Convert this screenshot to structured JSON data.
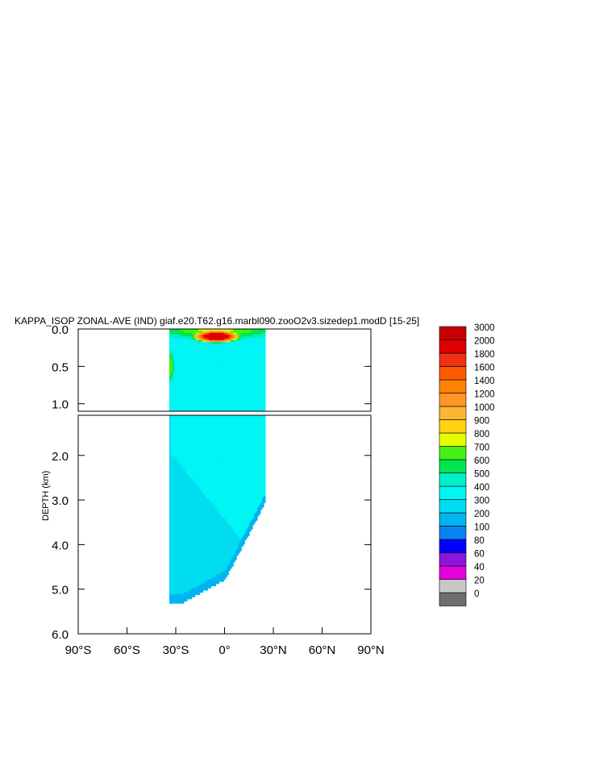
{
  "chart_data": {
    "type": "heatmap",
    "title": "KAPPA_ISOP ZONAL-AVE (IND) giaf.e20.T62.g16.marbl090.zooO2v3.sizedep1.modD [15-25]",
    "ylabel": "DEPTH (km)",
    "xlabel": "",
    "x_range": [
      -90,
      90
    ],
    "x_ticks": [
      {
        "value": -90,
        "label": "90°S"
      },
      {
        "value": -60,
        "label": "60°S"
      },
      {
        "value": -30,
        "label": "30°S"
      },
      {
        "value": 0,
        "label": "0°"
      },
      {
        "value": 30,
        "label": "30°N"
      },
      {
        "value": 60,
        "label": "60°N"
      },
      {
        "value": 90,
        "label": "90°N"
      }
    ],
    "upper_panel": {
      "y_range": [
        0.0,
        1.1
      ],
      "y_ticks": [
        {
          "value": 0.0,
          "label": "0.0"
        },
        {
          "value": 0.5,
          "label": "0.5"
        },
        {
          "value": 1.0,
          "label": "1.0"
        }
      ]
    },
    "lower_panel": {
      "y_range": [
        1.1,
        6.0
      ],
      "y_ticks": [
        {
          "value": 2.0,
          "label": "2.0"
        },
        {
          "value": 3.0,
          "label": "3.0"
        },
        {
          "value": 4.0,
          "label": "4.0"
        },
        {
          "value": 5.0,
          "label": "5.0"
        },
        {
          "value": 6.0,
          "label": "6.0"
        }
      ]
    },
    "colorbar": {
      "levels": [
        "0",
        "20",
        "40",
        "60",
        "80",
        "100",
        "200",
        "300",
        "400",
        "500",
        "600",
        "700",
        "800",
        "900",
        "1000",
        "1200",
        "1400",
        "1600",
        "1800",
        "2000",
        "3000"
      ],
      "colors": [
        "#6e6e6e",
        "#c8c8c8",
        "#e600dc",
        "#8c14dc",
        "#0000ff",
        "#0a82f0",
        "#00b4f0",
        "#00dcf0",
        "#00f5f5",
        "#00f0c8",
        "#00e650",
        "#46f014",
        "#e6ff00",
        "#ffd214",
        "#ffb432",
        "#ff9628",
        "#ff8200",
        "#ff5a00",
        "#f03214",
        "#dc0000",
        "#c80000"
      ]
    },
    "data": {
      "lat_range_upper": [
        -34,
        25
      ],
      "lat_range_lower": [
        -34,
        25
      ],
      "surface_maximum": {
        "value": 3000,
        "lat": -5,
        "depth": 0.1
      },
      "near_surface_south_value": 800,
      "interior_value_upper": 400,
      "interior_value_deep": 300,
      "bottom_value": 200,
      "bottom_depth_south": 5.3
    }
  }
}
